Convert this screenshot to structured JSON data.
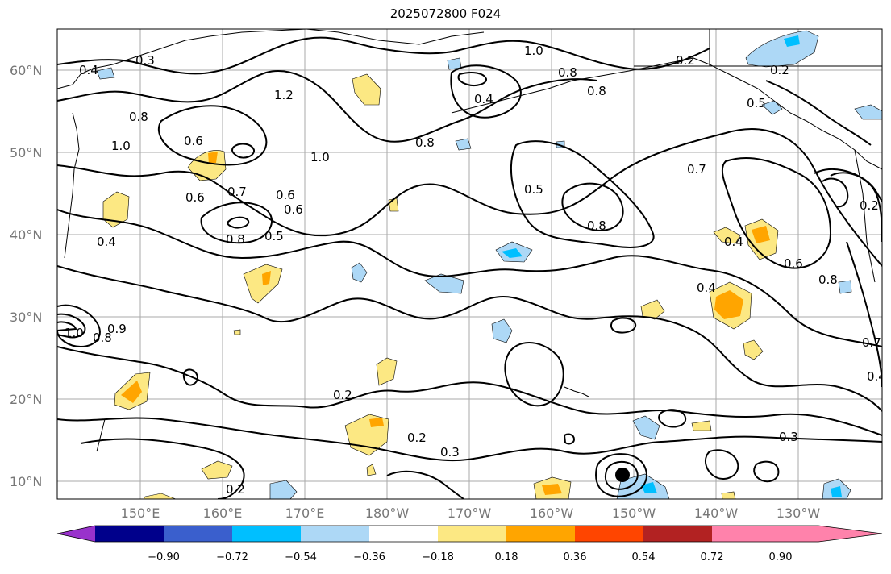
{
  "title": "2025072800 F024",
  "colors": {
    "grid": "#aaaaaa",
    "contour": "#000000",
    "axis_labels": "#777777"
  },
  "latitude_labels": [
    "60°N",
    "50°N",
    "40°N",
    "30°N",
    "20°N",
    "10°N"
  ],
  "longitude_labels": [
    "150°E",
    "160°E",
    "170°E",
    "180°W",
    "170°W",
    "160°W",
    "150°W",
    "140°W",
    "130°W"
  ],
  "contour_labels": [
    "0.3",
    "0.4",
    "1.0",
    "0.8",
    "1.2",
    "0.4",
    "0.8",
    "0.2",
    "0.2",
    "0.5",
    "0.8",
    "1.0",
    "0.6",
    "1.0",
    "0.6",
    "0.7",
    "0.6",
    "0.6",
    "0.8",
    "0.5",
    "0.4",
    "0.8",
    "0.5",
    "0.7",
    "0.8",
    "0.4",
    "0.6",
    "0.8",
    "0.2",
    "0.4",
    "1.0",
    "0.8",
    "0.9",
    "0.2",
    "0.2",
    "0.3",
    "0.3",
    "0.7",
    "0.4",
    "0.2"
  ],
  "colorbar": {
    "ticks": [
      "−0.90",
      "−0.72",
      "−0.54",
      "−0.36",
      "−0.18",
      "0.18",
      "0.36",
      "0.54",
      "0.72",
      "0.90"
    ],
    "bins": [
      {
        "color": "#9932cc"
      },
      {
        "color": "#00008b"
      },
      {
        "color": "#3a5fcd"
      },
      {
        "color": "#00bfff"
      },
      {
        "color": "#add8f6"
      },
      {
        "color": "#ffffff"
      },
      {
        "color": "#fce883"
      },
      {
        "color": "#ffa500"
      },
      {
        "color": "#ff4500"
      },
      {
        "color": "#b22222"
      },
      {
        "color": "#ff82ab"
      }
    ]
  }
}
